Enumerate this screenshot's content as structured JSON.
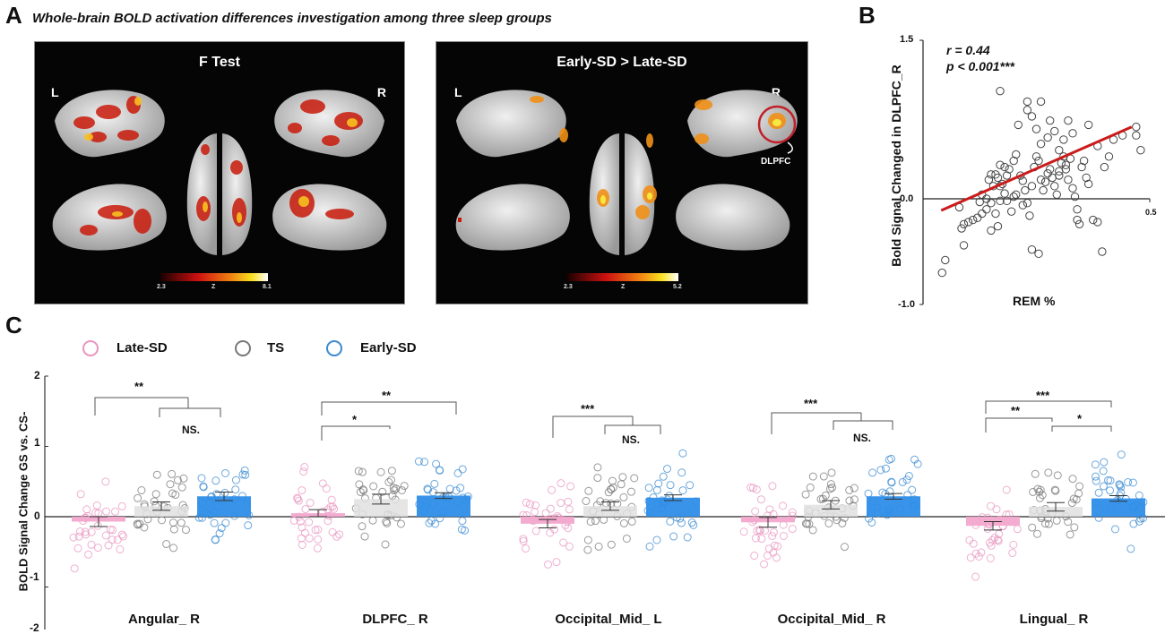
{
  "panel_a": {
    "letter": "A",
    "title": "Whole-brain BOLD activation differences investigation among three sleep groups",
    "maps": [
      {
        "title": "F Test",
        "left_label": "L",
        "right_label": "R",
        "colorbar": {
          "min": "2.3",
          "mid": "Z",
          "max": "8.1"
        }
      },
      {
        "title": "Early-SD > Late-SD",
        "left_label": "L",
        "right_label": "R",
        "colorbar": {
          "min": "2.3",
          "mid": "Z",
          "max": "5.2"
        },
        "annotation": "DLPFC"
      }
    ],
    "colors": {
      "map_bg": "#050505",
      "cortex": "#d9d9d9",
      "circle": "#c0202a"
    }
  },
  "panel_b": {
    "letter": "B",
    "r_text": "r = 0.44",
    "p_text": "p < 0.001***"
  },
  "panel_c": {
    "letter": "C",
    "legend": [
      {
        "label": "Late-SD",
        "color": "#e895c0"
      },
      {
        "label": "TS",
        "color": "#777777"
      },
      {
        "label": "Early-SD",
        "color": "#3a8ad0"
      }
    ]
  },
  "chart_data": [
    {
      "type": "scatter",
      "title": "",
      "xlabel": "REM %",
      "ylabel": "Bold Signal Changed in DLPFC_R",
      "xlim": [
        0,
        0.5
      ],
      "ylim": [
        -1.0,
        1.5
      ],
      "x_ticks": [
        "0.5"
      ],
      "y_ticks": [
        "1.5",
        "0.0",
        "-1.0"
      ],
      "annotations": [
        "r = 0.44",
        "p < 0.001***"
      ],
      "fit_line": {
        "x": [
          0.04,
          0.46
        ],
        "y": [
          -0.11,
          0.68
        ],
        "color": "#cc1a1a"
      },
      "points": [
        [
          0.042,
          -0.7
        ],
        [
          0.049,
          -0.58
        ],
        [
          0.09,
          -0.44
        ],
        [
          0.085,
          -0.28
        ],
        [
          0.1,
          -0.22
        ],
        [
          0.09,
          -0.24
        ],
        [
          0.08,
          -0.08
        ],
        [
          0.11,
          -0.2
        ],
        [
          0.12,
          -0.18
        ],
        [
          0.13,
          -0.14
        ],
        [
          0.125,
          -0.03
        ],
        [
          0.13,
          0.04
        ],
        [
          0.14,
          0.0
        ],
        [
          0.14,
          -0.1
        ],
        [
          0.15,
          -0.04
        ],
        [
          0.16,
          -0.14
        ],
        [
          0.15,
          -0.3
        ],
        [
          0.165,
          -0.26
        ],
        [
          0.17,
          -0.02
        ],
        [
          0.17,
          0.12
        ],
        [
          0.155,
          0.12
        ],
        [
          0.145,
          0.18
        ],
        [
          0.15,
          0.23
        ],
        [
          0.16,
          0.23
        ],
        [
          0.175,
          0.14
        ],
        [
          0.18,
          0.05
        ],
        [
          0.185,
          -0.02
        ],
        [
          0.195,
          -0.12
        ],
        [
          0.2,
          0.02
        ],
        [
          0.19,
          0.28
        ],
        [
          0.2,
          0.36
        ],
        [
          0.205,
          0.42
        ],
        [
          0.215,
          0.22
        ],
        [
          0.22,
          0.17
        ],
        [
          0.225,
          0.08
        ],
        [
          0.23,
          -0.04
        ],
        [
          0.235,
          -0.16
        ],
        [
          0.24,
          0.12
        ],
        [
          0.245,
          0.3
        ],
        [
          0.25,
          0.4
        ],
        [
          0.255,
          0.36
        ],
        [
          0.26,
          0.18
        ],
        [
          0.265,
          0.08
        ],
        [
          0.27,
          0.16
        ],
        [
          0.275,
          0.24
        ],
        [
          0.28,
          0.28
        ],
        [
          0.285,
          0.2
        ],
        [
          0.29,
          0.12
        ],
        [
          0.295,
          0.04
        ],
        [
          0.3,
          0.22
        ],
        [
          0.305,
          0.34
        ],
        [
          0.31,
          0.4
        ],
        [
          0.315,
          0.28
        ],
        [
          0.32,
          0.18
        ],
        [
          0.33,
          0.1
        ],
        [
          0.335,
          0.02
        ],
        [
          0.34,
          -0.1
        ],
        [
          0.345,
          -0.24
        ],
        [
          0.35,
          0.3
        ],
        [
          0.355,
          0.36
        ],
        [
          0.36,
          0.2
        ],
        [
          0.365,
          0.14
        ],
        [
          0.26,
          0.52
        ],
        [
          0.275,
          0.58
        ],
        [
          0.29,
          0.64
        ],
        [
          0.3,
          0.46
        ],
        [
          0.31,
          0.56
        ],
        [
          0.25,
          0.66
        ],
        [
          0.24,
          0.78
        ],
        [
          0.23,
          0.84
        ],
        [
          0.26,
          0.92
        ],
        [
          0.28,
          0.74
        ],
        [
          0.23,
          0.92
        ],
        [
          0.17,
          1.02
        ],
        [
          0.21,
          0.7
        ],
        [
          0.32,
          0.74
        ],
        [
          0.33,
          0.62
        ],
        [
          0.365,
          0.7
        ],
        [
          0.375,
          -0.2
        ],
        [
          0.385,
          -0.22
        ],
        [
          0.34,
          -0.2
        ],
        [
          0.385,
          0.5
        ],
        [
          0.4,
          0.3
        ],
        [
          0.41,
          0.4
        ],
        [
          0.42,
          0.56
        ],
        [
          0.44,
          0.6
        ],
        [
          0.47,
          0.6
        ],
        [
          0.48,
          0.46
        ],
        [
          0.47,
          0.68
        ],
        [
          0.395,
          -0.5
        ],
        [
          0.24,
          -0.48
        ],
        [
          0.255,
          -0.52
        ],
        [
          0.18,
          0.3
        ],
        [
          0.17,
          0.32
        ],
        [
          0.165,
          0.2
        ],
        [
          0.185,
          0.22
        ],
        [
          0.205,
          0.04
        ],
        [
          0.22,
          -0.06
        ],
        [
          0.3,
          0.26
        ],
        [
          0.315,
          0.32
        ],
        [
          0.325,
          0.38
        ]
      ]
    },
    {
      "type": "bar",
      "title": "",
      "xlabel": "",
      "ylabel": "BOLD Signal Change GS vs. CS-",
      "ylim": [
        -2,
        2
      ],
      "y_ticks": [
        "2",
        "1",
        "0",
        "-1",
        "-2"
      ],
      "categories": [
        "Angular_ R",
        "DLPFC_ R",
        "Occipital_Mid_ L",
        "Occipital_Mid_ R",
        "Lingual_ R"
      ],
      "series": [
        {
          "name": "Late-SD",
          "color": "#e895c0",
          "bar_color": "#f2a8cc",
          "values": [
            -0.07,
            0.05,
            -0.1,
            -0.08,
            -0.13
          ],
          "sem": [
            0.07,
            0.05,
            0.06,
            0.07,
            0.06
          ]
        },
        {
          "name": "TS",
          "color": "#777777",
          "bar_color": "#e0e0e0",
          "values": [
            0.15,
            0.25,
            0.15,
            0.17,
            0.14
          ],
          "sem": [
            0.06,
            0.07,
            0.06,
            0.06,
            0.06
          ]
        },
        {
          "name": "Early-SD",
          "color": "#3a8ad0",
          "bar_color": "#2e8ee8",
          "values": [
            0.29,
            0.3,
            0.27,
            0.29,
            0.26
          ],
          "sem": [
            0.06,
            0.04,
            0.04,
            0.04,
            0.04
          ]
        }
      ],
      "significance": [
        [
          {
            "pair": "Late-SD vs TS+Early-SD",
            "label": "**"
          },
          {
            "pair": "TS vs Early-SD",
            "label": "NS."
          }
        ],
        [
          {
            "pair": "Late-SD vs Early-SD",
            "label": "**"
          },
          {
            "pair": "Late-SD vs TS",
            "label": "*"
          }
        ],
        [
          {
            "pair": "Late-SD vs TS+Early-SD",
            "label": "***"
          },
          {
            "pair": "TS vs Early-SD",
            "label": "NS."
          }
        ],
        [
          {
            "pair": "Late-SD vs TS+Early-SD",
            "label": "***"
          },
          {
            "pair": "TS vs Early-SD",
            "label": "NS."
          }
        ],
        [
          {
            "pair": "Late-SD vs Early-SD",
            "label": "***"
          },
          {
            "pair": "Late-SD vs TS",
            "label": "**"
          },
          {
            "pair": "TS vs Early-SD",
            "label": "*"
          }
        ]
      ]
    }
  ]
}
